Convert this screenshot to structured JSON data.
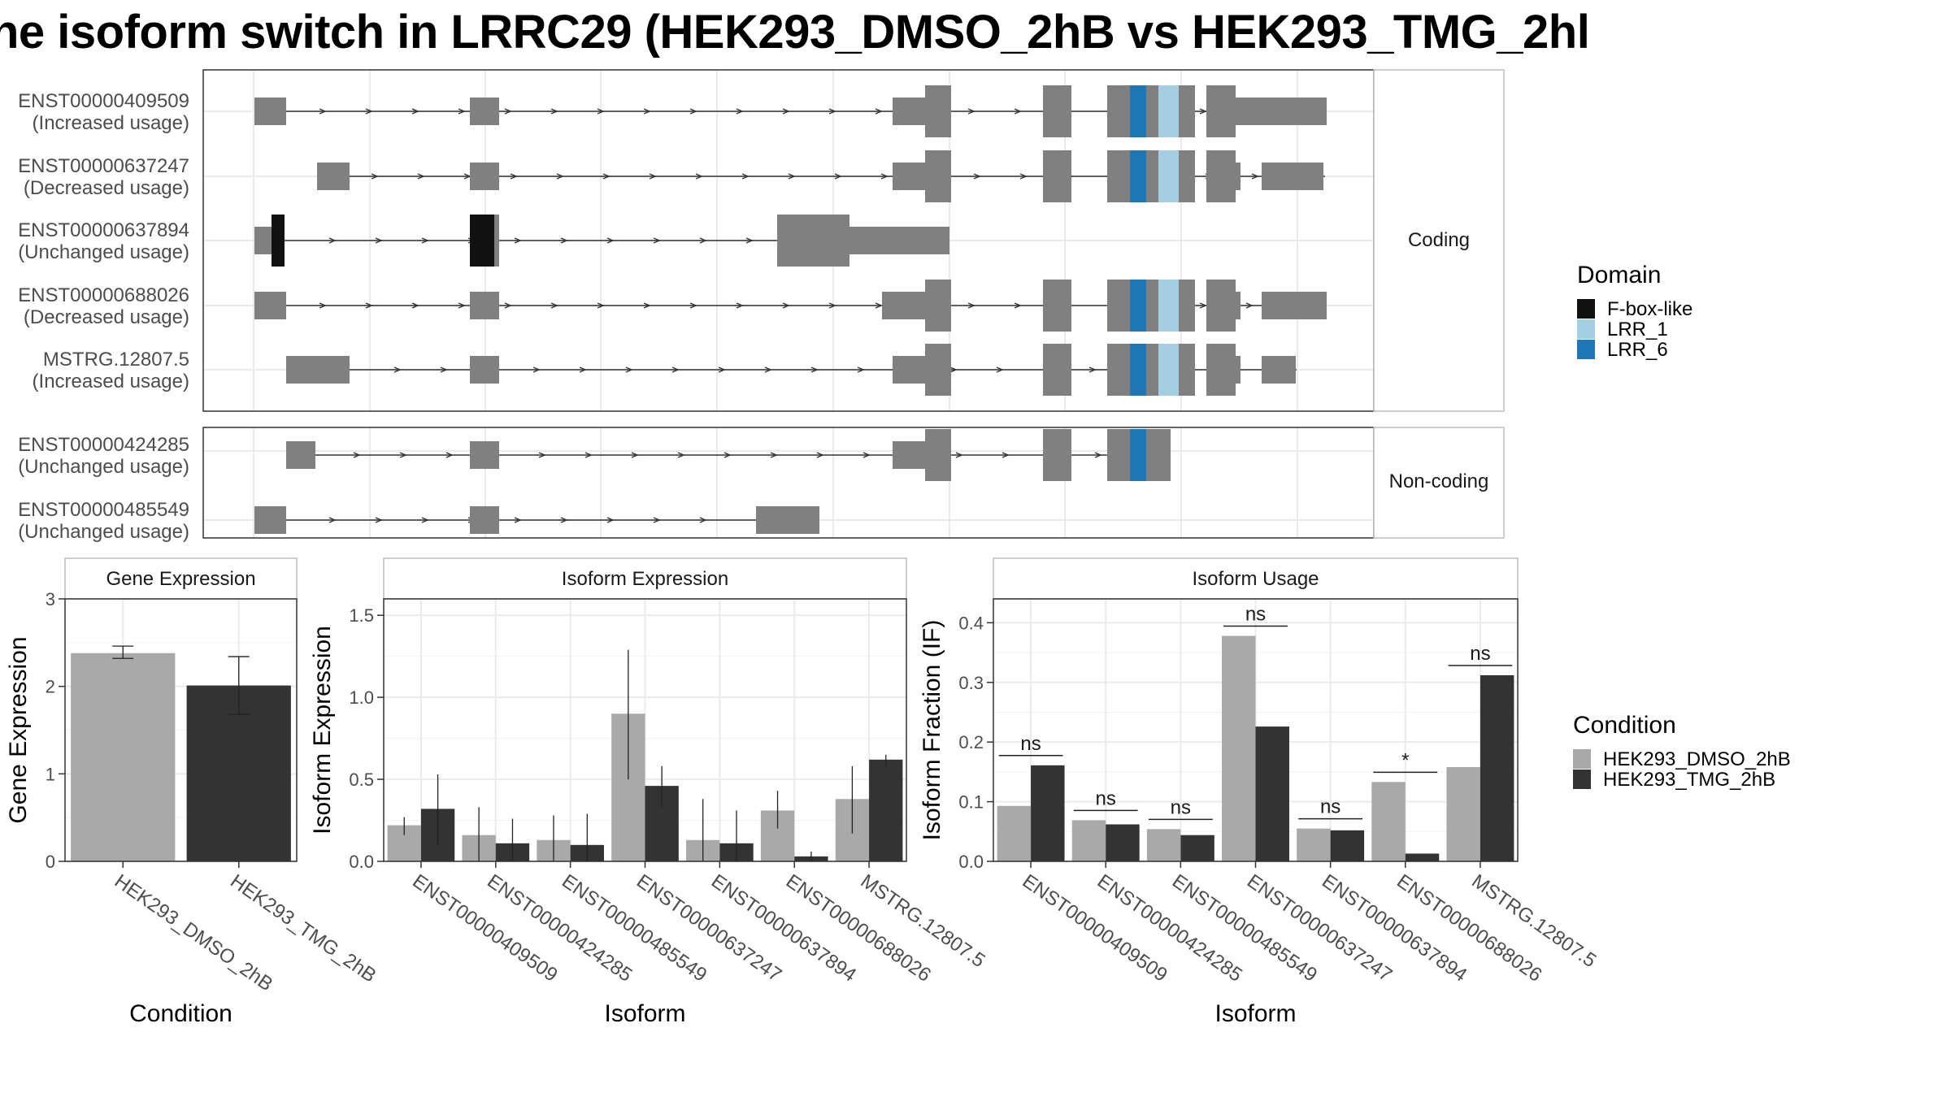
{
  "title": "he isoform switch in LRRC29 (HEK293_DMSO_2hB vs HEK293_TMG_2hl",
  "structure": {
    "coding_label": "Coding",
    "noncoding_label": "Non-coding",
    "transcripts": [
      {
        "id": "ENST00000409509",
        "usage": "(Increased usage)",
        "group": "coding"
      },
      {
        "id": "ENST00000637247",
        "usage": "(Decreased usage)",
        "group": "coding"
      },
      {
        "id": "ENST00000637894",
        "usage": "(Unchanged usage)",
        "group": "coding"
      },
      {
        "id": "ENST00000688026",
        "usage": "(Decreased usage)",
        "group": "coding"
      },
      {
        "id": "MSTRG.12807.5",
        "usage": "(Increased usage)",
        "group": "coding"
      },
      {
        "id": "ENST00000424285",
        "usage": "(Unchanged usage)",
        "group": "noncoding"
      },
      {
        "id": "ENST00000485549",
        "usage": "(Unchanged usage)",
        "group": "noncoding"
      }
    ],
    "domain_legend": {
      "title": "Domain",
      "items": [
        {
          "label": "F-box-like",
          "color": "#111111"
        },
        {
          "label": "LRR_1",
          "color": "#a6cee3"
        },
        {
          "label": "LRR_6",
          "color": "#1f78b4"
        }
      ]
    },
    "colors": {
      "exon": "#808080",
      "intron": "#333333"
    }
  },
  "condition_legend": {
    "title": "Condition",
    "items": [
      {
        "label": "HEK293_DMSO_2hB",
        "color": "#a9a9a9"
      },
      {
        "label": "HEK293_TMG_2hB",
        "color": "#333333"
      }
    ]
  },
  "chart_data": [
    {
      "type": "bar",
      "panel_title": "Gene Expression",
      "xlabel": "Condition",
      "ylabel": "Gene Expression",
      "ylim": [
        0,
        3
      ],
      "yticks": [
        0,
        1,
        2,
        3
      ],
      "categories": [
        "HEK293_DMSO_2hB",
        "HEK293_TMG_2hB"
      ],
      "values": [
        2.38,
        2.01
      ],
      "error_low": [
        2.32,
        1.68
      ],
      "error_high": [
        2.46,
        2.34
      ],
      "colors": [
        "#a9a9a9",
        "#333333"
      ]
    },
    {
      "type": "bar",
      "panel_title": "Isoform Expression",
      "xlabel": "Isoform",
      "ylabel": "Isoform Expression",
      "ylim": [
        0,
        1.6
      ],
      "yticks": [
        0.0,
        0.5,
        1.0,
        1.5
      ],
      "categories": [
        "ENST00000409509",
        "ENST00000424285",
        "ENST00000485549",
        "ENST00000637247",
        "ENST00000637894",
        "ENST00000688026",
        "MSTRG.12807.5"
      ],
      "series": [
        {
          "name": "HEK293_DMSO_2hB",
          "values": [
            0.22,
            0.16,
            0.13,
            0.9,
            0.13,
            0.31,
            0.38
          ],
          "error_low": [
            0.16,
            0.0,
            0.0,
            0.5,
            0.0,
            0.2,
            0.17
          ],
          "error_high": [
            0.27,
            0.33,
            0.28,
            1.29,
            0.38,
            0.43,
            0.58
          ]
        },
        {
          "name": "HEK293_TMG_2hB",
          "values": [
            0.32,
            0.11,
            0.1,
            0.46,
            0.11,
            0.03,
            0.62
          ],
          "error_low": [
            0.1,
            0.0,
            0.0,
            0.33,
            0.0,
            0.01,
            0.58
          ],
          "error_high": [
            0.53,
            0.26,
            0.29,
            0.58,
            0.31,
            0.06,
            0.65
          ]
        }
      ]
    },
    {
      "type": "bar",
      "panel_title": "Isoform Usage",
      "xlabel": "Isoform",
      "ylabel": "Isoform Fraction (IF)",
      "ylim": [
        0,
        0.44
      ],
      "yticks": [
        0.0,
        0.1,
        0.2,
        0.3,
        0.4
      ],
      "categories": [
        "ENST00000409509",
        "ENST00000424285",
        "ENST00000485549",
        "ENST00000637247",
        "ENST00000637894",
        "ENST00000688026",
        "MSTRG.12807.5"
      ],
      "series": [
        {
          "name": "HEK293_DMSO_2hB",
          "values": [
            0.093,
            0.069,
            0.054,
            0.378,
            0.055,
            0.133,
            0.158
          ]
        },
        {
          "name": "HEK293_TMG_2hB",
          "values": [
            0.161,
            0.062,
            0.044,
            0.226,
            0.052,
            0.013,
            0.312
          ]
        }
      ],
      "significance": [
        "ns",
        "ns",
        "ns",
        "ns",
        "ns",
        "*",
        "ns"
      ]
    }
  ]
}
